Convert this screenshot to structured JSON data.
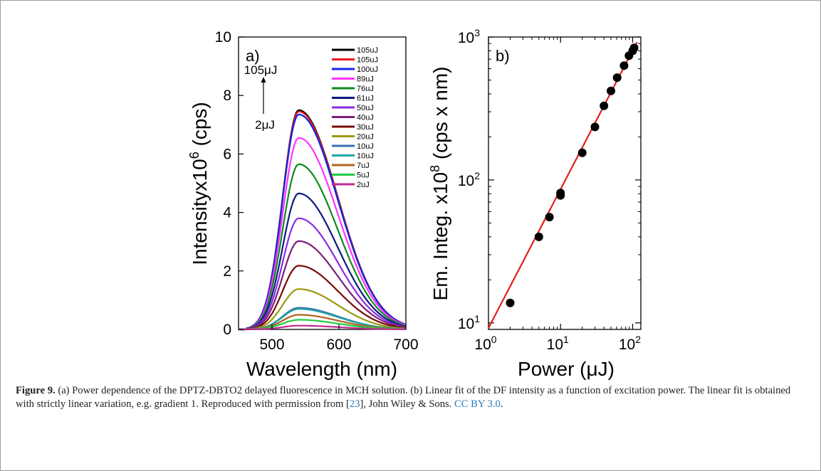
{
  "figure": {
    "caption_label": "Figure 9.",
    "caption_part1": "(a) Power dependence of the DPTZ-DBTO2 delayed fluorescence in MCH solution. (b) Linear fit of the DF intensity as a function of excitation power. The linear fit is obtained with strictly linear variation, e.g. gradient 1. Reproduced with permission from [",
    "caption_ref": "23",
    "caption_part2": "], John Wiley & Sons. ",
    "caption_license": "CC BY 3.0",
    "caption_end": "."
  },
  "colors": {
    "link": "#2a7ab8",
    "fit_line": "#e02020",
    "points": "#000000"
  },
  "chart_data": [
    {
      "type": "line",
      "panel_label": "a)",
      "xlabel": "Wavelength (nm)",
      "ylabel_main": "Intensityx10",
      "ylabel_sup": "6",
      "ylabel_unit": " (cps)",
      "xlim": [
        450,
        700
      ],
      "ylim": [
        0,
        10
      ],
      "xticks": [
        500,
        600,
        700
      ],
      "yticks": [
        0,
        2,
        4,
        6,
        8,
        10
      ],
      "peak_wavelength": 540,
      "arrow_top_label": "105μJ",
      "arrow_bottom_label": "2μJ",
      "legend_position": "top-right",
      "series": [
        {
          "name": "105uJ",
          "peak": 7.5,
          "color": "#000000"
        },
        {
          "name": "105uJ",
          "peak": 7.45,
          "color": "#e81c1c"
        },
        {
          "name": "100uJ",
          "peak": 7.35,
          "color": "#1424e0"
        },
        {
          "name": "89uJ",
          "peak": 6.55,
          "color": "#ff33ff"
        },
        {
          "name": "76uJ",
          "peak": 5.65,
          "color": "#0e8a1e"
        },
        {
          "name": "61uJ",
          "peak": 4.65,
          "color": "#0a1a80"
        },
        {
          "name": "50uJ",
          "peak": 3.8,
          "color": "#8a2be2"
        },
        {
          "name": "40uJ",
          "peak": 3.02,
          "color": "#7a1f7a"
        },
        {
          "name": "30uJ",
          "peak": 2.18,
          "color": "#7a0a0a"
        },
        {
          "name": "20uJ",
          "peak": 1.38,
          "color": "#9a9a10"
        },
        {
          "name": "10uJ",
          "peak": 0.74,
          "color": "#3a6fb0"
        },
        {
          "name": "10uJ",
          "peak": 0.7,
          "color": "#1fa3a3"
        },
        {
          "name": "7uJ",
          "peak": 0.5,
          "color": "#b0621e"
        },
        {
          "name": "5uJ",
          "peak": 0.33,
          "color": "#22cc44"
        },
        {
          "name": "2uJ",
          "peak": 0.13,
          "color": "#c02a90"
        }
      ]
    },
    {
      "type": "scatter",
      "panel_label": "b)",
      "xlabel": "Power (μJ)",
      "ylabel_main": "Em. Integ. x10",
      "ylabel_sup": "8",
      "ylabel_unit": " (cps x nm)",
      "x_scale": "log",
      "y_scale": "log",
      "xlim": [
        1,
        130
      ],
      "ylim": [
        9,
        1000
      ],
      "xtick_labels": [
        "10",
        "10",
        "10"
      ],
      "xtick_exps": [
        "0",
        "1",
        "2"
      ],
      "ytick_labels": [
        "10",
        "10",
        "10"
      ],
      "ytick_exps": [
        "1",
        "2",
        "3"
      ],
      "fit_line": {
        "x": [
          1.0,
          115
        ],
        "y": [
          9.2,
          920
        ]
      },
      "points": [
        {
          "x": 2,
          "y": 13.8
        },
        {
          "x": 5,
          "y": 40
        },
        {
          "x": 7,
          "y": 55
        },
        {
          "x": 10,
          "y": 78
        },
        {
          "x": 10,
          "y": 81
        },
        {
          "x": 20,
          "y": 155
        },
        {
          "x": 30,
          "y": 235
        },
        {
          "x": 40,
          "y": 330
        },
        {
          "x": 50,
          "y": 420
        },
        {
          "x": 61,
          "y": 520
        },
        {
          "x": 76,
          "y": 630
        },
        {
          "x": 89,
          "y": 740
        },
        {
          "x": 100,
          "y": 800
        },
        {
          "x": 105,
          "y": 840
        }
      ]
    }
  ]
}
